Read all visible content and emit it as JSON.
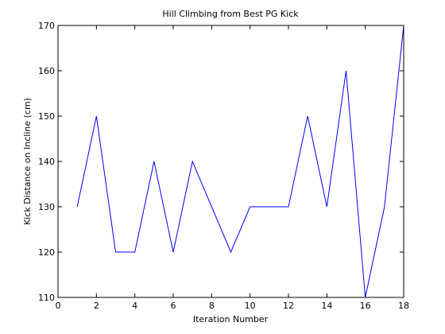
{
  "chart_data": {
    "type": "line",
    "title": "Hill Climbing from Best PG Kick",
    "xlabel": "Iteration Number",
    "ylabel": "Kick Distance on Incline (cm)",
    "xlim": [
      0,
      18
    ],
    "ylim": [
      110,
      170
    ],
    "xticks": [
      0,
      2,
      4,
      6,
      8,
      10,
      12,
      14,
      16,
      18
    ],
    "yticks": [
      110,
      120,
      130,
      140,
      150,
      160,
      170
    ],
    "grid": false,
    "series": [
      {
        "color": "#0000ff",
        "x": [
          1,
          2,
          3,
          4,
          5,
          6,
          7,
          8,
          9,
          10,
          11,
          12,
          13,
          14,
          15,
          16,
          17,
          18
        ],
        "y": [
          130,
          150,
          120,
          120,
          140,
          120,
          140,
          130,
          120,
          130,
          130,
          130,
          150,
          130,
          160,
          110,
          130,
          170
        ]
      }
    ]
  }
}
